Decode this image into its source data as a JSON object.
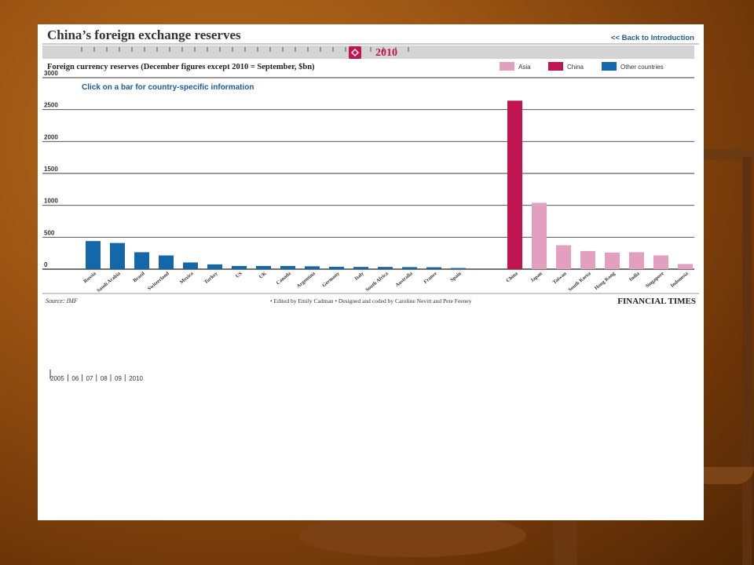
{
  "header": {
    "title": "China’s foreign exchange reserves",
    "back_link": "<< Back to Introduction",
    "year": "2010"
  },
  "chart_data": {
    "type": "bar",
    "title": "Foreign currency reserves (December figures except 2010 = September, $bn)",
    "instruction": "Click on a bar for country-specific information",
    "legend": [
      "Asia",
      "China",
      "Other countries"
    ],
    "legend_placement": "top-right",
    "colors": {
      "Asia": "#e39fbe",
      "China": "#c0154f",
      "Other countries": "#1467a8"
    },
    "ylim": [
      0,
      3000
    ],
    "yticks": [
      0,
      500,
      1000,
      1500,
      2000,
      2500,
      3000
    ],
    "grid": true,
    "bars": [
      {
        "label": "Russia",
        "value": 440,
        "group": "Other countries"
      },
      {
        "label": "Saudi Arabia",
        "value": 410,
        "group": "Other countries"
      },
      {
        "label": "Brazil",
        "value": 265,
        "group": "Other countries"
      },
      {
        "label": "Switzerland",
        "value": 215,
        "group": "Other countries"
      },
      {
        "label": "Mexico",
        "value": 105,
        "group": "Other countries"
      },
      {
        "label": "Turkey",
        "value": 75,
        "group": "Other countries"
      },
      {
        "label": "US",
        "value": 50,
        "group": "Other countries"
      },
      {
        "label": "UK",
        "value": 50,
        "group": "Other countries"
      },
      {
        "label": "Canada",
        "value": 50,
        "group": "Other countries"
      },
      {
        "label": "Argentina",
        "value": 45,
        "group": "Other countries"
      },
      {
        "label": "Germany",
        "value": 38,
        "group": "Other countries"
      },
      {
        "label": "Italy",
        "value": 35,
        "group": "Other countries"
      },
      {
        "label": "South Africa",
        "value": 35,
        "group": "Other countries"
      },
      {
        "label": "Australia",
        "value": 32,
        "group": "Other countries"
      },
      {
        "label": "France",
        "value": 30,
        "group": "Other countries"
      },
      {
        "label": "Spain",
        "value": 18,
        "group": "Other countries"
      },
      {
        "label": "China",
        "value": 2640,
        "group": "China"
      },
      {
        "label": "Japan",
        "value": 1040,
        "group": "Asia"
      },
      {
        "label": "Taiwan",
        "value": 375,
        "group": "Asia"
      },
      {
        "label": "South Korea",
        "value": 285,
        "group": "Asia"
      },
      {
        "label": "Hong Kong",
        "value": 260,
        "group": "Asia"
      },
      {
        "label": "India",
        "value": 265,
        "group": "Asia"
      },
      {
        "label": "Singapore",
        "value": 215,
        "group": "Asia"
      },
      {
        "label": "Indonesia",
        "value": 80,
        "group": "Asia"
      }
    ]
  },
  "footer": {
    "source": "Source: IMF",
    "credits": "• Edited by Emily Cadman  • Designed and coded by Caroline Nevitt and Pete Feeney",
    "brand": "FINANCIAL TIMES"
  },
  "timeline": {
    "labels": [
      "2005",
      "06",
      "07",
      "08",
      "09",
      "2010"
    ]
  }
}
